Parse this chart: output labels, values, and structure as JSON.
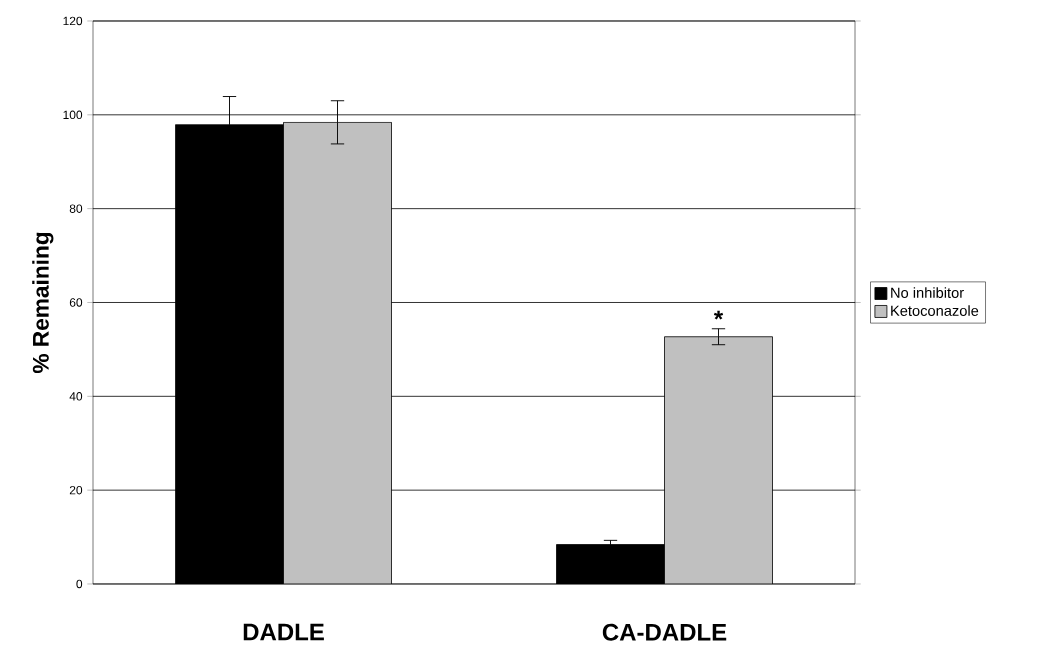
{
  "chart_data": {
    "type": "bar",
    "ylabel": "% Remaining",
    "categories": [
      "DADLE",
      "CA-DADLE"
    ],
    "series": [
      {
        "name": "No inhibitor",
        "color": "#000000",
        "values": [
          97.9,
          8.4
        ],
        "errors": [
          6.0,
          0.9
        ]
      },
      {
        "name": "Ketoconazole",
        "color": "#c0c0c0",
        "values": [
          98.4,
          52.7
        ],
        "errors": [
          4.6,
          1.7
        ]
      }
    ],
    "ylim": [
      0,
      120
    ],
    "yticks": [
      0,
      20,
      40,
      60,
      80,
      100,
      120
    ],
    "grid": "y",
    "legend": "right",
    "annotations": [
      "*"
    ]
  }
}
